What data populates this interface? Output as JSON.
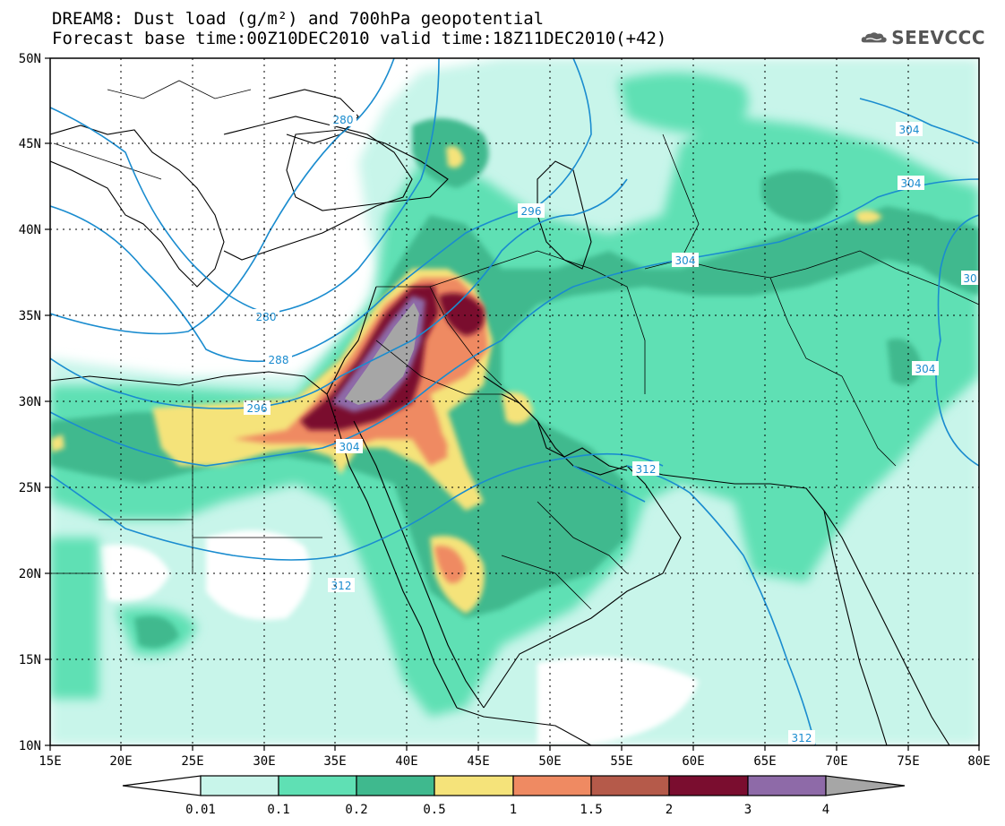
{
  "header": {
    "title_line1": "DREAM8: Dust load (g/m²) and 700hPa geopotential",
    "title_line2": "Forecast base time:00Z10DEC2010 valid time:18Z11DEC2010(+42)"
  },
  "logo": {
    "text": "SEEVCCC",
    "icon": "cloud-icon"
  },
  "axes": {
    "lat_labels": [
      "50N",
      "45N",
      "40N",
      "35N",
      "30N",
      "25N",
      "20N",
      "15N",
      "10N"
    ],
    "lon_labels": [
      "15E",
      "20E",
      "25E",
      "30E",
      "35E",
      "40E",
      "45E",
      "50E",
      "55E",
      "60E",
      "65E",
      "70E",
      "75E",
      "80E"
    ]
  },
  "colorbar": {
    "boundaries": [
      "0.01",
      "0.1",
      "0.2",
      "0.5",
      "1",
      "1.5",
      "2",
      "3",
      "4"
    ],
    "colors": [
      "#ffffff",
      "#c8f5ea",
      "#5fe0b4",
      "#3fb98e",
      "#f5e37a",
      "#ef8a62",
      "#b55a4a",
      "#7a0d2f",
      "#8e6aa8",
      "#a6a6a6"
    ]
  },
  "contours": {
    "color": "#1a8ccf",
    "labels": [
      "280",
      "280",
      "288",
      "296",
      "296",
      "304",
      "304",
      "304",
      "304",
      "304",
      "312",
      "312",
      "312",
      "30"
    ]
  }
}
